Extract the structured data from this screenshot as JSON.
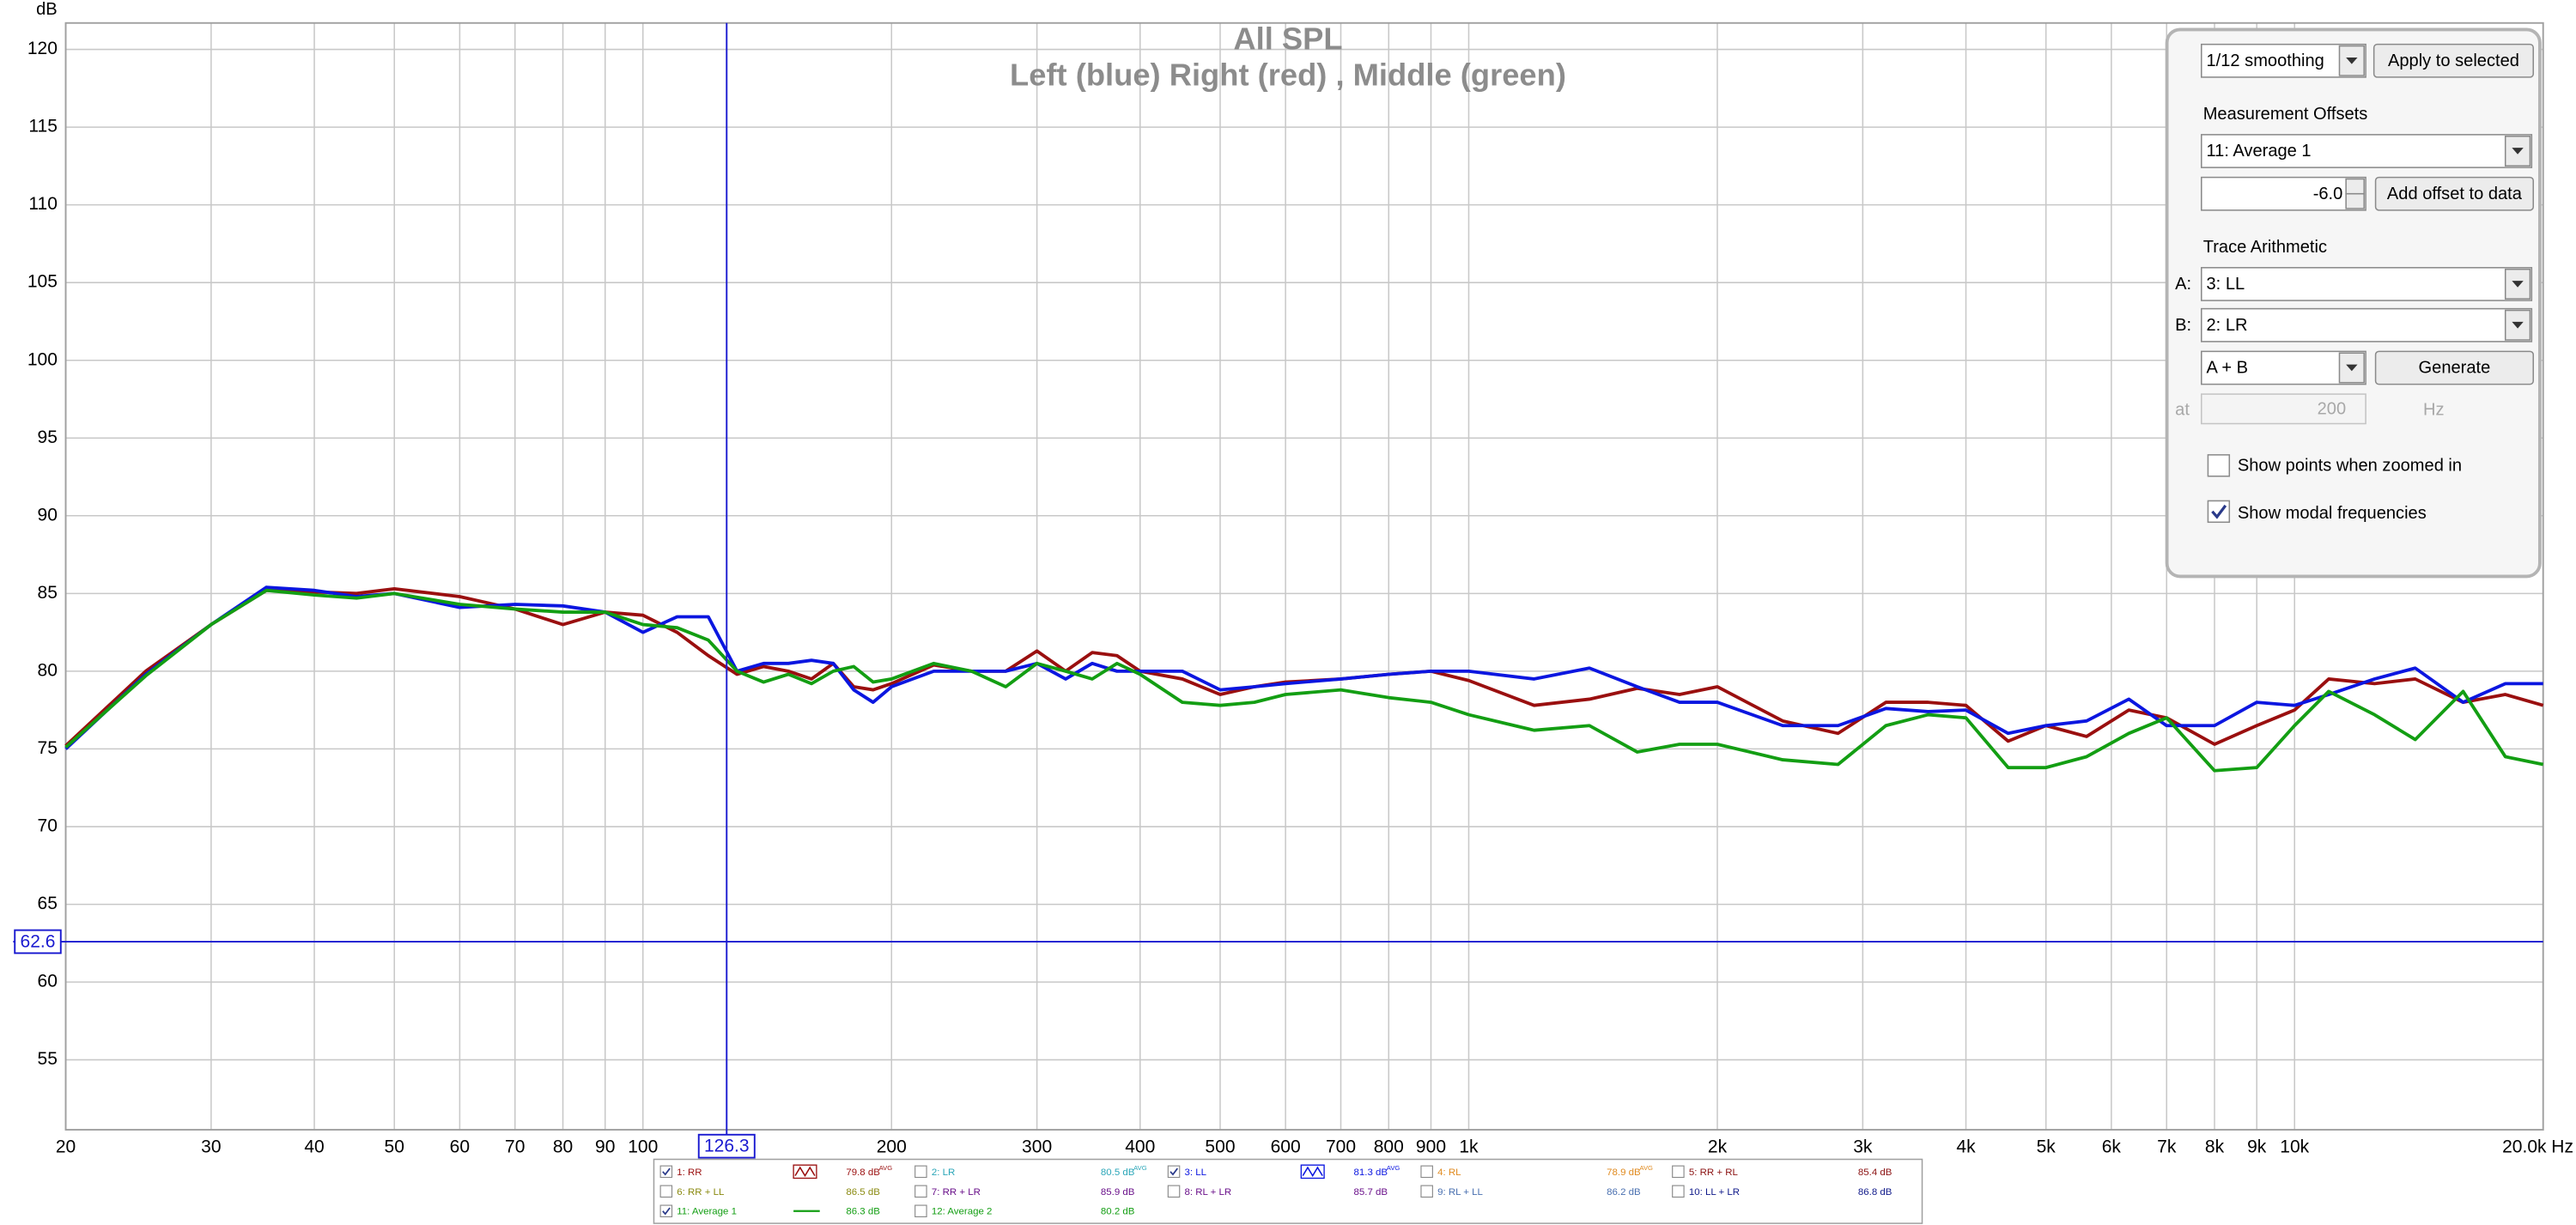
{
  "chart_data": {
    "type": "line",
    "title": "All SPL",
    "subtitle": "Left (blue) Right (red) , Middle (green)",
    "y_label": "dB",
    "x_unit": "Hz",
    "log_x": true,
    "grid": true,
    "xlim": [
      20,
      20000
    ],
    "ylim": [
      50.5,
      121.7
    ],
    "xticks": [
      20,
      30,
      40,
      50,
      60,
      70,
      80,
      90,
      100,
      200,
      300,
      400,
      500,
      600,
      700,
      800,
      900,
      {
        "value": 1000,
        "label": "1k"
      },
      {
        "value": 2000,
        "label": "2k"
      },
      {
        "value": 3000,
        "label": "3k"
      },
      {
        "value": 4000,
        "label": "4k"
      },
      {
        "value": 5000,
        "label": "5k"
      },
      {
        "value": 6000,
        "label": "6k"
      },
      {
        "value": 7000,
        "label": "7k"
      },
      {
        "value": 8000,
        "label": "8k"
      },
      {
        "value": 9000,
        "label": "9k"
      },
      {
        "value": 10000,
        "label": "10k"
      },
      {
        "value": 20000,
        "label": "20.0k"
      }
    ],
    "yticks": [
      55,
      60,
      65,
      70,
      75,
      80,
      85,
      90,
      95,
      100,
      105,
      110,
      115,
      120
    ],
    "cursor": {
      "x": 126.3,
      "y": 62.6
    },
    "x": [
      20,
      25,
      30,
      35,
      40,
      45,
      50,
      60,
      70,
      80,
      90,
      100,
      110,
      120,
      130,
      140,
      150,
      160,
      170,
      180,
      190,
      200,
      225,
      250,
      275,
      300,
      325,
      350,
      375,
      400,
      450,
      500,
      550,
      600,
      700,
      800,
      900,
      1000,
      1200,
      1400,
      1600,
      1800,
      2000,
      2400,
      2800,
      3200,
      3600,
      4000,
      4500,
      5000,
      5600,
      6300,
      7000,
      8000,
      9000,
      10000,
      11000,
      12500,
      14000,
      16000,
      18000,
      20000
    ],
    "series": [
      {
        "color": "#9a0f0f",
        "values": [
          75.2,
          80.0,
          83.0,
          85.2,
          85.1,
          85.0,
          85.3,
          84.8,
          84.0,
          83.0,
          83.8,
          83.6,
          82.5,
          81.0,
          79.8,
          80.3,
          80.0,
          79.5,
          80.5,
          79.0,
          78.8,
          79.2,
          80.4,
          80.0,
          80.0,
          81.3,
          80.0,
          81.2,
          81.0,
          80.0,
          79.5,
          78.5,
          79.0,
          79.3,
          79.5,
          79.8,
          80.0,
          79.4,
          77.8,
          78.2,
          78.9,
          78.5,
          79.0,
          76.8,
          76.0,
          78.0,
          78.0,
          77.8,
          75.5,
          76.5,
          75.8,
          77.5,
          77.0,
          75.3,
          76.5,
          77.5,
          79.5,
          79.2,
          79.5,
          78.0,
          78.5,
          77.8
        ]
      },
      {
        "color": "#0b16e0",
        "values": [
          75.0,
          79.8,
          83.0,
          85.4,
          85.2,
          84.8,
          85.0,
          84.1,
          84.3,
          84.2,
          83.8,
          82.5,
          83.5,
          83.5,
          80.0,
          80.5,
          80.5,
          80.7,
          80.5,
          78.8,
          78.0,
          79.0,
          80.0,
          80.0,
          80.0,
          80.5,
          79.5,
          80.5,
          80.0,
          80.0,
          80.0,
          78.8,
          79.0,
          79.2,
          79.5,
          79.8,
          80.0,
          80.0,
          79.5,
          80.2,
          79.0,
          78.0,
          78.0,
          76.5,
          76.5,
          77.6,
          77.4,
          77.5,
          76.0,
          76.5,
          76.8,
          78.2,
          76.5,
          76.5,
          78.0,
          77.8,
          78.5,
          79.5,
          80.2,
          78.0,
          79.2,
          79.2
        ]
      },
      {
        "color": "#139e13",
        "values": [
          75.1,
          79.7,
          83.0,
          85.2,
          84.9,
          84.7,
          85.0,
          84.3,
          84.0,
          83.8,
          83.8,
          83.0,
          82.8,
          82.0,
          80.0,
          79.3,
          79.8,
          79.2,
          80.0,
          80.3,
          79.3,
          79.5,
          80.5,
          80.0,
          79.0,
          80.5,
          80.0,
          79.5,
          80.5,
          79.8,
          78.0,
          77.8,
          78.0,
          78.5,
          78.8,
          78.3,
          78.0,
          77.2,
          76.2,
          76.5,
          74.8,
          75.3,
          75.3,
          74.3,
          74.0,
          76.5,
          77.2,
          77.0,
          73.8,
          73.8,
          74.5,
          76.0,
          77.0,
          73.6,
          73.8,
          76.5,
          78.7,
          77.2,
          75.6,
          78.7,
          74.5,
          74.0
        ]
      }
    ]
  },
  "panel": {
    "smoothing": "1/12 smoothing",
    "apply_button": "Apply to selected",
    "offsets_label": "Measurement Offsets",
    "offset_trace": "11: Average 1",
    "offset_value": "-6.0",
    "add_offset_button": "Add offset to data",
    "arithmetic_label": "Trace Arithmetic",
    "a_label": "A:",
    "a_value": "3: LL",
    "b_label": "B:",
    "b_value": "2: LR",
    "operation": "A + B",
    "generate_button": "Generate",
    "at_label": "at",
    "at_value": "200",
    "at_unit": "Hz",
    "show_points": {
      "label": "Show points when zoomed in",
      "checked": false
    },
    "show_modal": {
      "label": "Show modal frequencies",
      "checked": true
    }
  },
  "traces": [
    {
      "name": "1: RR",
      "level": "79.8 dB",
      "note": "AVG",
      "color": "#9a0f0f",
      "checked": true,
      "icon": "box"
    },
    {
      "name": "2: LR",
      "level": "80.5 dB",
      "note": "AVG",
      "color": "#2aa6b8",
      "checked": false
    },
    {
      "name": "3: LL",
      "level": "81.3 dB",
      "note": "AVG",
      "color": "#0b16e0",
      "checked": true,
      "icon": "box"
    },
    {
      "name": "4: RL",
      "level": "78.9 dB",
      "note": "AVG",
      "color": "#e08a1e",
      "checked": false
    },
    {
      "name": "5: RR + RL",
      "level": "85.4 dB",
      "color": "#8a1010",
      "checked": false
    },
    {
      "name": "6: RR + LL",
      "level": "86.5 dB",
      "color": "#8a8a10",
      "checked": false
    },
    {
      "name": "7: RR + LR",
      "level": "85.9 dB",
      "color": "#6a108a",
      "checked": false
    },
    {
      "name": "8: RL + LR",
      "level": "85.7 dB",
      "color": "#6a108a",
      "checked": false
    },
    {
      "name": "9: RL + LL",
      "level": "86.2 dB",
      "color": "#4a70b0",
      "checked": false
    },
    {
      "name": "10: LL + LR",
      "level": "86.8 dB",
      "color": "#101a8a",
      "checked": false
    },
    {
      "name": "11: Average 1",
      "level": "86.3 dB",
      "color": "#139e13",
      "checked": true,
      "icon": "line"
    },
    {
      "name": "12: Average 2",
      "level": "80.2 dB",
      "color": "#139e13",
      "checked": false
    }
  ]
}
